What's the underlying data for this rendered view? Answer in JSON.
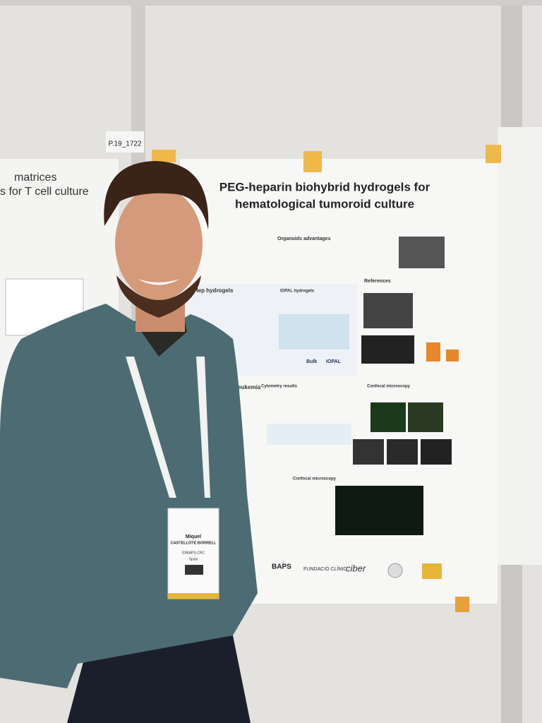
{
  "poster_number": "P.19_1722",
  "left_poster": {
    "title_line1": "matrices",
    "title_line2": "s for T cell culture"
  },
  "poster": {
    "title_line1": "PEG-heparin biohybrid hydrogels for",
    "title_line2": "hematological tumoroid culture",
    "sections": [
      "Organoids advantages",
      "G-Hep hydrogels",
      "IOPAL hydrogels",
      "References",
      "Cytometry results",
      "leukemia",
      "Confocal microscopy",
      "Confocal microscopy"
    ],
    "labels": [
      "Bulk",
      "IOPAL"
    ],
    "logos": [
      "BAPS",
      "FUNDACIÓ CLÍNIC",
      "ciber"
    ]
  },
  "badge": {
    "first_name": "Miquel",
    "last_name": "CASTELLOTE BORRELL",
    "institution": "IDIBAPS-CRC",
    "country": "Spain"
  }
}
